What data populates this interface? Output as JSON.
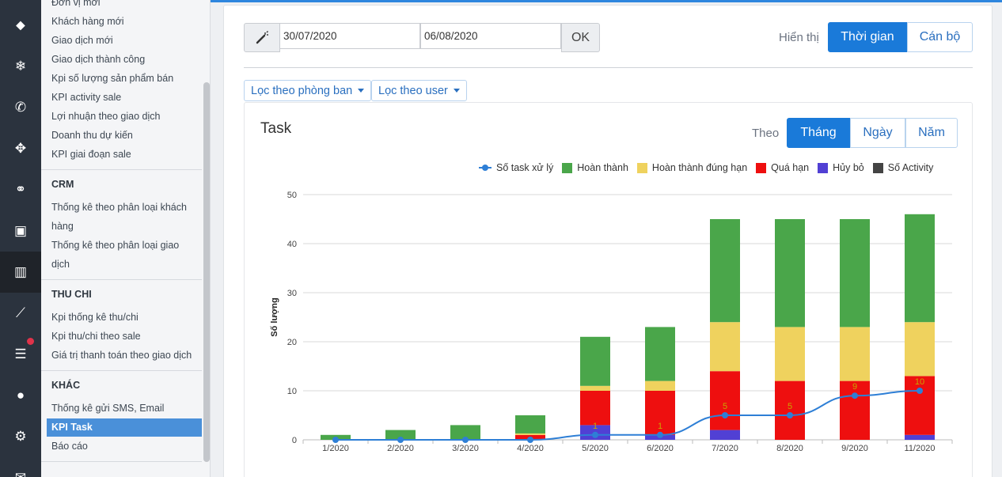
{
  "sidebar_icons": [
    {
      "name": "tags-icon",
      "glyph": "⬥"
    },
    {
      "name": "snowflake-icon",
      "glyph": "❄"
    },
    {
      "name": "phone-icon",
      "glyph": "✆"
    },
    {
      "name": "crosshair-icon",
      "glyph": "✥"
    },
    {
      "name": "handshake-icon",
      "glyph": "⚭"
    },
    {
      "name": "money-icon",
      "glyph": "▣"
    },
    {
      "name": "bar-chart-icon",
      "glyph": "▥"
    },
    {
      "name": "line-chart-icon",
      "glyph": "⟋"
    },
    {
      "name": "list-icon",
      "glyph": "☰"
    },
    {
      "name": "user-icon",
      "glyph": "●"
    },
    {
      "name": "gear-icon",
      "glyph": "⚙"
    },
    {
      "name": "mail-icon",
      "glyph": "✉"
    }
  ],
  "submenu": {
    "top_items": [
      "Đơn vị mới",
      "Khách hàng mới",
      "Giao dịch mới",
      "Giao dịch thành công",
      "Kpi số lượng sản phẩm bán",
      "KPI activity sale",
      "Lợi nhuận theo giao dịch",
      "Doanh thu dự kiến",
      "KPI giai đoạn sale"
    ],
    "crm_title": "CRM",
    "crm_items": [
      "Thống kê theo phân loại khách",
      "hàng",
      "Thống kê theo phân loại giao",
      "dịch"
    ],
    "thuchi_title": "THU CHI",
    "thuchi_items": [
      "Kpi thống kê thu/chi",
      "Kpi thu/chi theo sale",
      "Giá trị thanh toán theo giao dịch"
    ],
    "khac_title": "KHÁC",
    "khac_items": [
      "Thống kê gửi SMS, Email"
    ],
    "active_item": "KPI Task",
    "bottom_items": [
      "Báo cáo"
    ]
  },
  "filters": {
    "date_from": "30/07/2020",
    "date_to": "06/08/2020",
    "ok_label": "OK",
    "display_label": "Hiển thị",
    "display_options": [
      "Thời gian",
      "Cán bộ"
    ],
    "department_filter": "Lọc theo phòng ban",
    "user_filter": "Lọc theo user"
  },
  "task": {
    "title": "Task",
    "period_label": "Theo",
    "periods": [
      "Tháng",
      "Ngày",
      "Năm"
    ]
  },
  "colors": {
    "hoan_thanh": "#4aa64a",
    "dung_han": "#efd25e",
    "qua_han": "#ee0f0f",
    "huy_bo": "#5140d4",
    "activity": "#444444",
    "line": "#2e7fd6",
    "accent": "#1a7ad9"
  },
  "chart_data": {
    "type": "bar",
    "stacked": true,
    "ylabel": "Số lượng",
    "ylim": [
      0,
      50
    ],
    "yticks": [
      0,
      10,
      20,
      30,
      40,
      50
    ],
    "categories": [
      "1/2020",
      "2/2020",
      "3/2020",
      "4/2020",
      "5/2020",
      "6/2020",
      "7/2020",
      "8/2020",
      "9/2020",
      "11/2020"
    ],
    "legend_position": "top-right",
    "series": [
      {
        "name": "Số task xử lý",
        "type": "line",
        "values": [
          0,
          0,
          0,
          0,
          1,
          1,
          5,
          5,
          9,
          10
        ],
        "data_labels": [
          "",
          "",
          "",
          "",
          "1",
          "1",
          "5",
          "5",
          "9",
          "10"
        ]
      },
      {
        "name": "Hủy bỏ",
        "type": "bar",
        "values": [
          0,
          0,
          0,
          0,
          3,
          1,
          2,
          0,
          0,
          1
        ]
      },
      {
        "name": "Quá hạn",
        "type": "bar",
        "values": [
          0,
          0,
          0,
          1,
          7,
          9,
          12,
          12,
          12,
          12
        ]
      },
      {
        "name": "Hoàn thành đúng hạn",
        "type": "bar",
        "values": [
          0,
          0,
          0,
          0.3,
          1,
          2,
          10,
          11,
          11,
          11
        ]
      },
      {
        "name": "Hoàn thành",
        "type": "bar",
        "values": [
          1,
          2,
          3,
          3.7,
          10,
          11,
          21,
          22,
          22,
          22
        ]
      },
      {
        "name": "Số Activity",
        "type": "bar",
        "values": [
          0,
          0,
          0,
          0,
          0,
          0,
          0,
          0,
          0,
          0
        ]
      }
    ]
  }
}
